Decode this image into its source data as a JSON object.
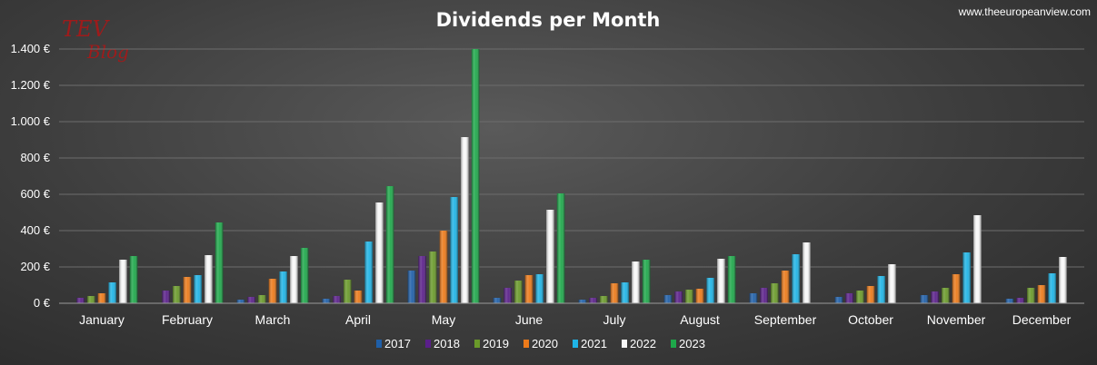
{
  "header": {
    "site": "www.theeuropeanview.com",
    "logo_line1": "TEV",
    "logo_line2": "Blog"
  },
  "chart_data": {
    "type": "bar",
    "title": "Dividends per Month",
    "xlabel": "",
    "ylabel": "",
    "ylim": [
      0,
      1400
    ],
    "yticks": [
      0,
      200,
      400,
      600,
      800,
      1000,
      1200,
      1400
    ],
    "ytick_labels": [
      "0 €",
      "200 €",
      "400 €",
      "600 €",
      "800 €",
      "1.000 €",
      "1.200 €",
      "1.400 €"
    ],
    "grid": true,
    "legend_position": "bottom",
    "categories": [
      "January",
      "February",
      "March",
      "April",
      "May",
      "June",
      "July",
      "August",
      "September",
      "October",
      "November",
      "December"
    ],
    "series": [
      {
        "name": "2017",
        "color": "#1f5fa8",
        "values": [
          0,
          0,
          20,
          25,
          180,
          30,
          20,
          45,
          55,
          35,
          45,
          25
        ]
      },
      {
        "name": "2018",
        "color": "#5a1f8a",
        "values": [
          30,
          70,
          35,
          40,
          260,
          85,
          30,
          65,
          85,
          55,
          65,
          30
        ]
      },
      {
        "name": "2019",
        "color": "#6a9a2a",
        "values": [
          40,
          95,
          45,
          130,
          285,
          125,
          40,
          75,
          110,
          70,
          85,
          85
        ]
      },
      {
        "name": "2020",
        "color": "#ec7a1a",
        "values": [
          55,
          145,
          135,
          70,
          400,
          155,
          110,
          80,
          180,
          95,
          160,
          100
        ]
      },
      {
        "name": "2021",
        "color": "#1fb4e6",
        "values": [
          115,
          155,
          175,
          340,
          585,
          160,
          115,
          140,
          270,
          150,
          280,
          165
        ]
      },
      {
        "name": "2022",
        "color": "#f7f7f7",
        "values": [
          240,
          265,
          260,
          555,
          915,
          515,
          230,
          245,
          335,
          215,
          485,
          255
        ]
      },
      {
        "name": "2023",
        "color": "#1ea84a",
        "values": [
          260,
          445,
          305,
          645,
          1400,
          605,
          240,
          260,
          0,
          0,
          0,
          0
        ]
      }
    ]
  }
}
